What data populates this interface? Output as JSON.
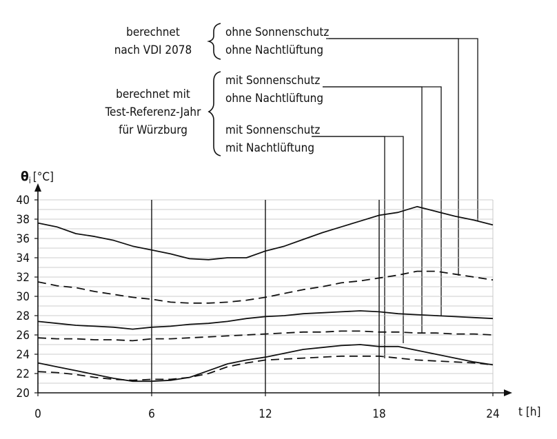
{
  "annotations": {
    "group1_label": [
      "berechnet",
      "nach VDI 2078"
    ],
    "group1_items": [
      "ohne Sonnenschutz",
      "ohne Nachtlüftung"
    ],
    "group2_label": [
      "berechnet mit",
      "Test-Referenz-Jahr",
      "für Würzburg"
    ],
    "group2_items_a": [
      "mit Sonnenschutz",
      "ohne Nachtlüftung"
    ],
    "group2_items_b": [
      "mit Sonnenschutz",
      "mit Nachtlüftung"
    ]
  },
  "colors": {
    "line": "#111111",
    "grid": "#bdbdbd",
    "background": "#ffffff"
  },
  "chart_data": {
    "type": "line",
    "title": "",
    "xlabel": "t [h]",
    "ylabel_symbol": "θ",
    "ylabel_sub": "i",
    "ylabel_unit": "[°C]",
    "xlim": [
      0,
      24
    ],
    "ylim": [
      20,
      40
    ],
    "xticks": [
      "0",
      "6",
      "12",
      "18",
      "24"
    ],
    "yticks": [
      "20",
      "22",
      "24",
      "26",
      "28",
      "30",
      "32",
      "34",
      "36",
      "38",
      "40"
    ],
    "grid": "horizontal",
    "vertical_markers": [
      6,
      12,
      18
    ],
    "series": [
      {
        "style": "solid",
        "x": [
          0,
          1,
          2,
          3,
          4,
          5,
          6,
          7,
          8,
          9,
          10,
          11,
          12,
          13,
          14,
          15,
          16,
          17,
          18,
          19,
          20,
          21,
          22,
          23,
          24
        ],
        "y": [
          37.6,
          37.2,
          36.5,
          36.2,
          35.8,
          35.2,
          34.8,
          34.4,
          33.9,
          33.8,
          34.0,
          34.0,
          34.7,
          35.2,
          35.9,
          36.6,
          37.2,
          37.8,
          38.4,
          38.7,
          39.3,
          38.8,
          38.3,
          37.9,
          37.4
        ]
      },
      {
        "style": "dashed",
        "x": [
          0,
          1,
          2,
          3,
          4,
          5,
          6,
          7,
          8,
          9,
          10,
          11,
          12,
          13,
          14,
          15,
          16,
          17,
          18,
          19,
          20,
          21,
          22,
          23,
          24
        ],
        "y": [
          31.5,
          31.1,
          30.9,
          30.5,
          30.2,
          29.9,
          29.7,
          29.4,
          29.3,
          29.3,
          29.4,
          29.6,
          29.9,
          30.3,
          30.7,
          31.0,
          31.4,
          31.6,
          31.9,
          32.2,
          32.6,
          32.6,
          32.3,
          32.0,
          31.7
        ]
      },
      {
        "style": "solid",
        "x": [
          0,
          1,
          2,
          3,
          4,
          5,
          6,
          7,
          8,
          9,
          10,
          11,
          12,
          13,
          14,
          15,
          16,
          17,
          18,
          19,
          20,
          21,
          22,
          23,
          24
        ],
        "y": [
          27.4,
          27.2,
          27.0,
          26.9,
          26.8,
          26.6,
          26.8,
          26.9,
          27.1,
          27.2,
          27.4,
          27.7,
          27.9,
          28.0,
          28.2,
          28.3,
          28.4,
          28.5,
          28.4,
          28.2,
          28.1,
          28.0,
          27.9,
          27.8,
          27.7
        ]
      },
      {
        "style": "dashed",
        "x": [
          0,
          1,
          2,
          3,
          4,
          5,
          6,
          7,
          8,
          9,
          10,
          11,
          12,
          13,
          14,
          15,
          16,
          17,
          18,
          19,
          20,
          21,
          22,
          23,
          24
        ],
        "y": [
          25.7,
          25.6,
          25.6,
          25.5,
          25.5,
          25.4,
          25.6,
          25.6,
          25.7,
          25.8,
          25.9,
          26.0,
          26.1,
          26.2,
          26.3,
          26.3,
          26.4,
          26.4,
          26.3,
          26.3,
          26.2,
          26.2,
          26.1,
          26.1,
          26.0
        ]
      },
      {
        "style": "solid",
        "x": [
          0,
          1,
          2,
          3,
          4,
          5,
          6,
          7,
          8,
          9,
          10,
          11,
          12,
          13,
          14,
          15,
          16,
          17,
          18,
          19,
          20,
          21,
          22,
          23,
          24
        ],
        "y": [
          23.1,
          22.7,
          22.3,
          21.9,
          21.5,
          21.2,
          21.2,
          21.3,
          21.6,
          22.3,
          23.0,
          23.4,
          23.7,
          24.1,
          24.5,
          24.7,
          24.9,
          25.0,
          24.8,
          24.8,
          24.4,
          24.0,
          23.6,
          23.2,
          22.9
        ]
      },
      {
        "style": "dashed",
        "x": [
          0,
          1,
          2,
          3,
          4,
          5,
          6,
          7,
          8,
          9,
          10,
          11,
          12,
          13,
          14,
          15,
          16,
          17,
          18,
          19,
          20,
          21,
          22,
          23,
          24
        ],
        "y": [
          22.2,
          22.1,
          21.9,
          21.6,
          21.4,
          21.3,
          21.4,
          21.4,
          21.6,
          22.0,
          22.7,
          23.1,
          23.4,
          23.5,
          23.6,
          23.7,
          23.8,
          23.8,
          23.8,
          23.6,
          23.4,
          23.3,
          23.2,
          23.1,
          22.9
        ]
      }
    ]
  }
}
